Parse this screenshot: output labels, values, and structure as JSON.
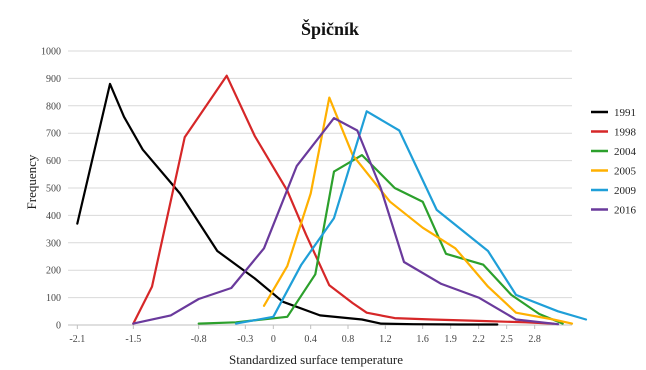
{
  "chart_data": {
    "type": "line",
    "title": "Špičník",
    "xlabel": "Standardized surface temperature",
    "ylabel": "Frequency",
    "xlim": [
      -2.2,
      3.2
    ],
    "ylim": [
      0,
      1000
    ],
    "x_ticks": [
      "-2.1",
      "-1.5",
      "-0.8",
      "-0.3",
      "0",
      "0.4",
      "0.8",
      "1.2",
      "1.6",
      "1.9",
      "2.2",
      "2.5",
      "2.8"
    ],
    "x_tick_values": [
      -2.1,
      -1.5,
      -0.8,
      -0.3,
      0,
      0.4,
      0.8,
      1.2,
      1.6,
      1.9,
      2.2,
      2.5,
      2.8
    ],
    "y_ticks": [
      0,
      100,
      200,
      300,
      400,
      500,
      600,
      700,
      800,
      900,
      1000
    ],
    "grid": "horizontal",
    "legend_position": "right",
    "series": [
      {
        "name": "1991",
        "color": "#000000",
        "points": [
          [
            -2.1,
            370
          ],
          [
            -1.75,
            880
          ],
          [
            -1.6,
            760
          ],
          [
            -1.4,
            640
          ],
          [
            -1.0,
            480
          ],
          [
            -0.6,
            270
          ],
          [
            -0.2,
            170
          ],
          [
            0.1,
            85
          ],
          [
            0.5,
            35
          ],
          [
            0.95,
            20
          ],
          [
            1.15,
            5
          ],
          [
            1.5,
            3
          ],
          [
            2.0,
            2
          ],
          [
            2.4,
            2
          ]
        ]
      },
      {
        "name": "1998",
        "color": "#d62728",
        "points": [
          [
            -1.5,
            5
          ],
          [
            -1.3,
            140
          ],
          [
            -0.95,
            685
          ],
          [
            -0.5,
            910
          ],
          [
            -0.2,
            690
          ],
          [
            0.15,
            490
          ],
          [
            0.35,
            330
          ],
          [
            0.6,
            145
          ],
          [
            0.85,
            80
          ],
          [
            1.0,
            45
          ],
          [
            1.3,
            25
          ],
          [
            1.7,
            20
          ],
          [
            2.2,
            15
          ],
          [
            2.7,
            10
          ],
          [
            3.0,
            5
          ]
        ]
      },
      {
        "name": "2004",
        "color": "#2ca02c",
        "points": [
          [
            -0.8,
            5
          ],
          [
            -0.4,
            10
          ],
          [
            0.15,
            30
          ],
          [
            0.45,
            185
          ],
          [
            0.65,
            560
          ],
          [
            0.95,
            620
          ],
          [
            1.3,
            500
          ],
          [
            1.6,
            450
          ],
          [
            1.85,
            260
          ],
          [
            2.25,
            220
          ],
          [
            2.55,
            110
          ],
          [
            2.85,
            40
          ],
          [
            3.1,
            5
          ]
        ]
      },
      {
        "name": "2005",
        "color": "#ffb000",
        "points": [
          [
            -0.1,
            70
          ],
          [
            0.15,
            215
          ],
          [
            0.4,
            480
          ],
          [
            0.6,
            830
          ],
          [
            0.85,
            620
          ],
          [
            1.25,
            450
          ],
          [
            1.6,
            355
          ],
          [
            1.95,
            280
          ],
          [
            2.3,
            140
          ],
          [
            2.6,
            45
          ],
          [
            3.0,
            20
          ],
          [
            3.2,
            5
          ]
        ]
      },
      {
        "name": "2009",
        "color": "#1f9fd8",
        "points": [
          [
            -0.4,
            5
          ],
          [
            0.0,
            30
          ],
          [
            0.3,
            220
          ],
          [
            0.65,
            390
          ],
          [
            1.0,
            780
          ],
          [
            1.35,
            710
          ],
          [
            1.75,
            420
          ],
          [
            2.3,
            270
          ],
          [
            2.6,
            110
          ],
          [
            3.05,
            50
          ],
          [
            3.35,
            20
          ]
        ]
      },
      {
        "name": "2016",
        "color": "#6a3a9c",
        "points": [
          [
            -1.5,
            5
          ],
          [
            -1.1,
            35
          ],
          [
            -0.8,
            95
          ],
          [
            -0.45,
            135
          ],
          [
            -0.1,
            280
          ],
          [
            0.25,
            580
          ],
          [
            0.65,
            755
          ],
          [
            0.9,
            710
          ],
          [
            1.15,
            500
          ],
          [
            1.4,
            230
          ],
          [
            1.8,
            150
          ],
          [
            2.2,
            100
          ],
          [
            2.6,
            20
          ],
          [
            3.05,
            3
          ]
        ]
      }
    ]
  }
}
